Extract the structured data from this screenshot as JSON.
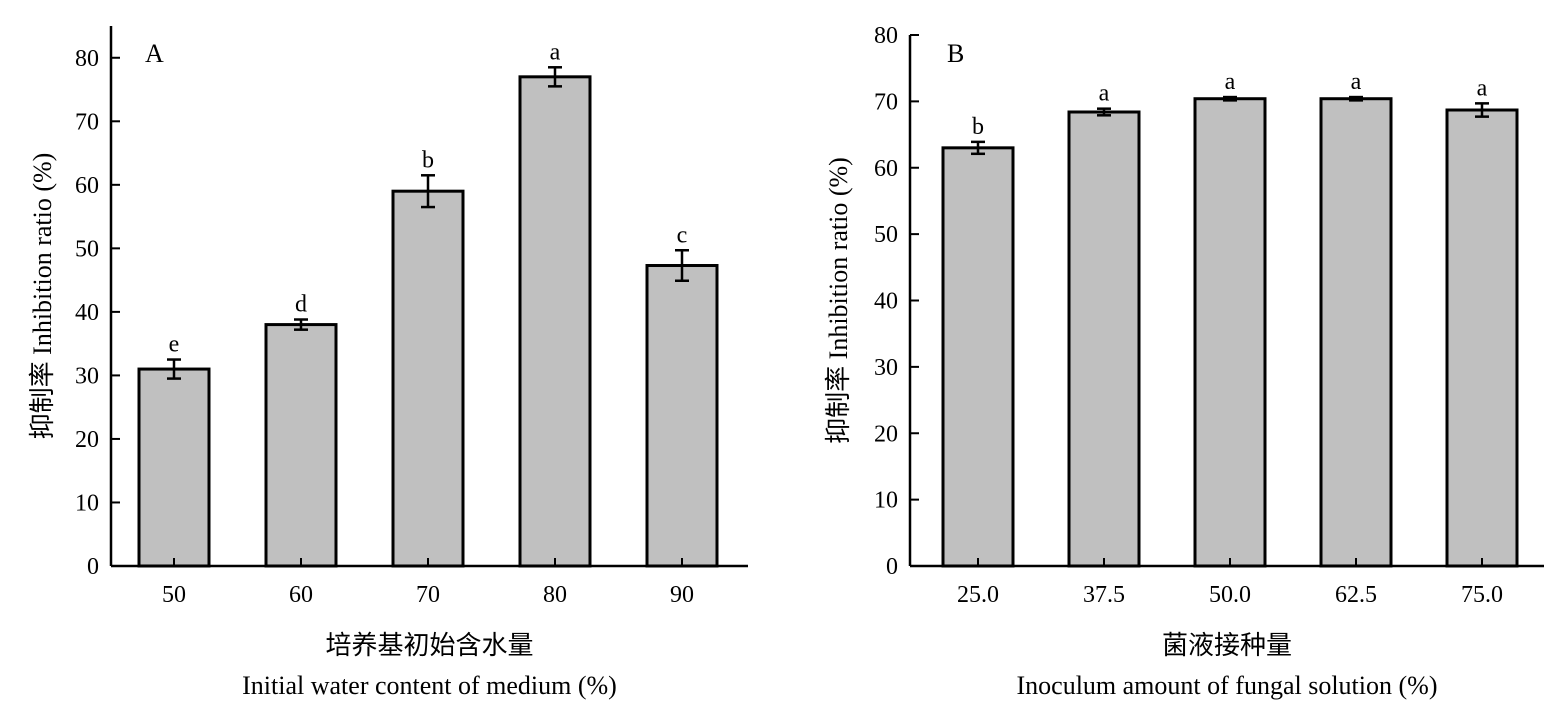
{
  "colors": {
    "bar_fill": "#c0c0c0",
    "stroke": "#000000"
  },
  "chart_data": [
    {
      "type": "bar",
      "panel_label": "A",
      "categories": [
        "50",
        "60",
        "70",
        "80",
        "90"
      ],
      "values": [
        31,
        38,
        59,
        77,
        47.3
      ],
      "errors": [
        1.5,
        0.8,
        2.5,
        1.5,
        2.4
      ],
      "significance": [
        "e",
        "d",
        "b",
        "a",
        "c"
      ],
      "ylabel": "抑制率 Inhibition ratio (%)",
      "xlabel_cn": "培养基初始含水量",
      "xlabel_en": "Initial water content of medium (%)",
      "ylim": [
        0,
        85
      ],
      "yticks": [
        0,
        10,
        20,
        30,
        40,
        50,
        60,
        70,
        80
      ]
    },
    {
      "type": "bar",
      "panel_label": "B",
      "categories": [
        "25.0",
        "37.5",
        "50.0",
        "62.5",
        "75.0"
      ],
      "values": [
        63,
        68.4,
        70.4,
        70.4,
        68.7
      ],
      "errors": [
        0.9,
        0.5,
        0.25,
        0.25,
        1.0
      ],
      "significance": [
        "b",
        "a",
        "a",
        "a",
        "a"
      ],
      "ylabel": "抑制率 Inhibition ratio (%)",
      "xlabel_cn": "菌液接种量",
      "xlabel_en": "Inoculum amount of fungal solution (%)",
      "ylim": [
        0,
        80
      ],
      "yticks": [
        0,
        10,
        20,
        30,
        40,
        50,
        60,
        70,
        80
      ]
    }
  ]
}
